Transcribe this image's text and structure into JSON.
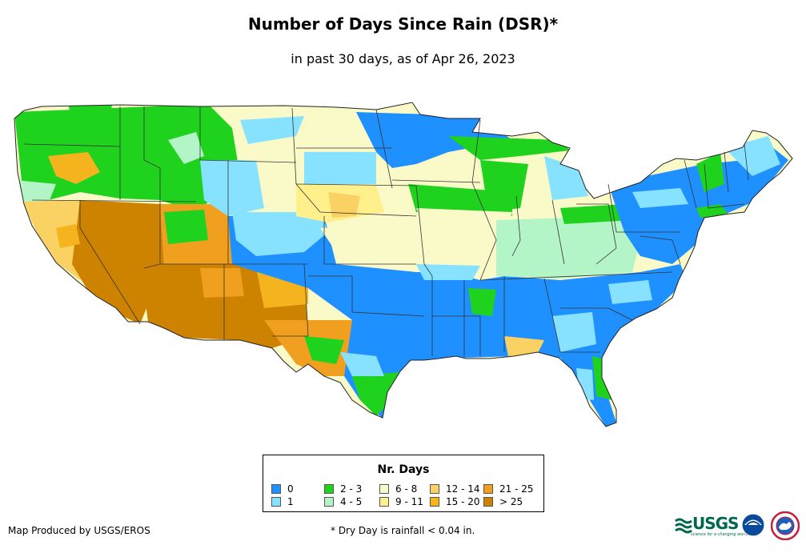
{
  "title": "Number of Days Since Rain (DSR)*",
  "subtitle": "in past 30 days, as of Apr 26, 2023",
  "legend": {
    "title": "Nr. Days",
    "items": [
      {
        "label": "0",
        "color": "#1e90ff"
      },
      {
        "label": "1",
        "color": "#87e2ff"
      },
      {
        "label": "2 - 3",
        "color": "#1ed21e"
      },
      {
        "label": "4 - 5",
        "color": "#b4f5c8"
      },
      {
        "label": "6 - 8",
        "color": "#fafac8"
      },
      {
        "label": "9 - 11",
        "color": "#fff08c"
      },
      {
        "label": "12 - 14",
        "color": "#fad264"
      },
      {
        "label": "15 - 20",
        "color": "#f5b41e"
      },
      {
        "label": "21 - 25",
        "color": "#f0a01e"
      },
      {
        "label": "> 25",
        "color": "#cd8200"
      }
    ]
  },
  "footer": {
    "producer": "Map Produced by USGS/EROS",
    "footnote": "* Dry Day is rainfall < 0.04 in."
  },
  "logos": {
    "usgs_text": "USGS",
    "usgs_tagline": "science for a changing world",
    "usgs_icon": "usgs-logo",
    "noaa_icon": "noaa-logo",
    "nws_icon": "nws-logo"
  }
}
